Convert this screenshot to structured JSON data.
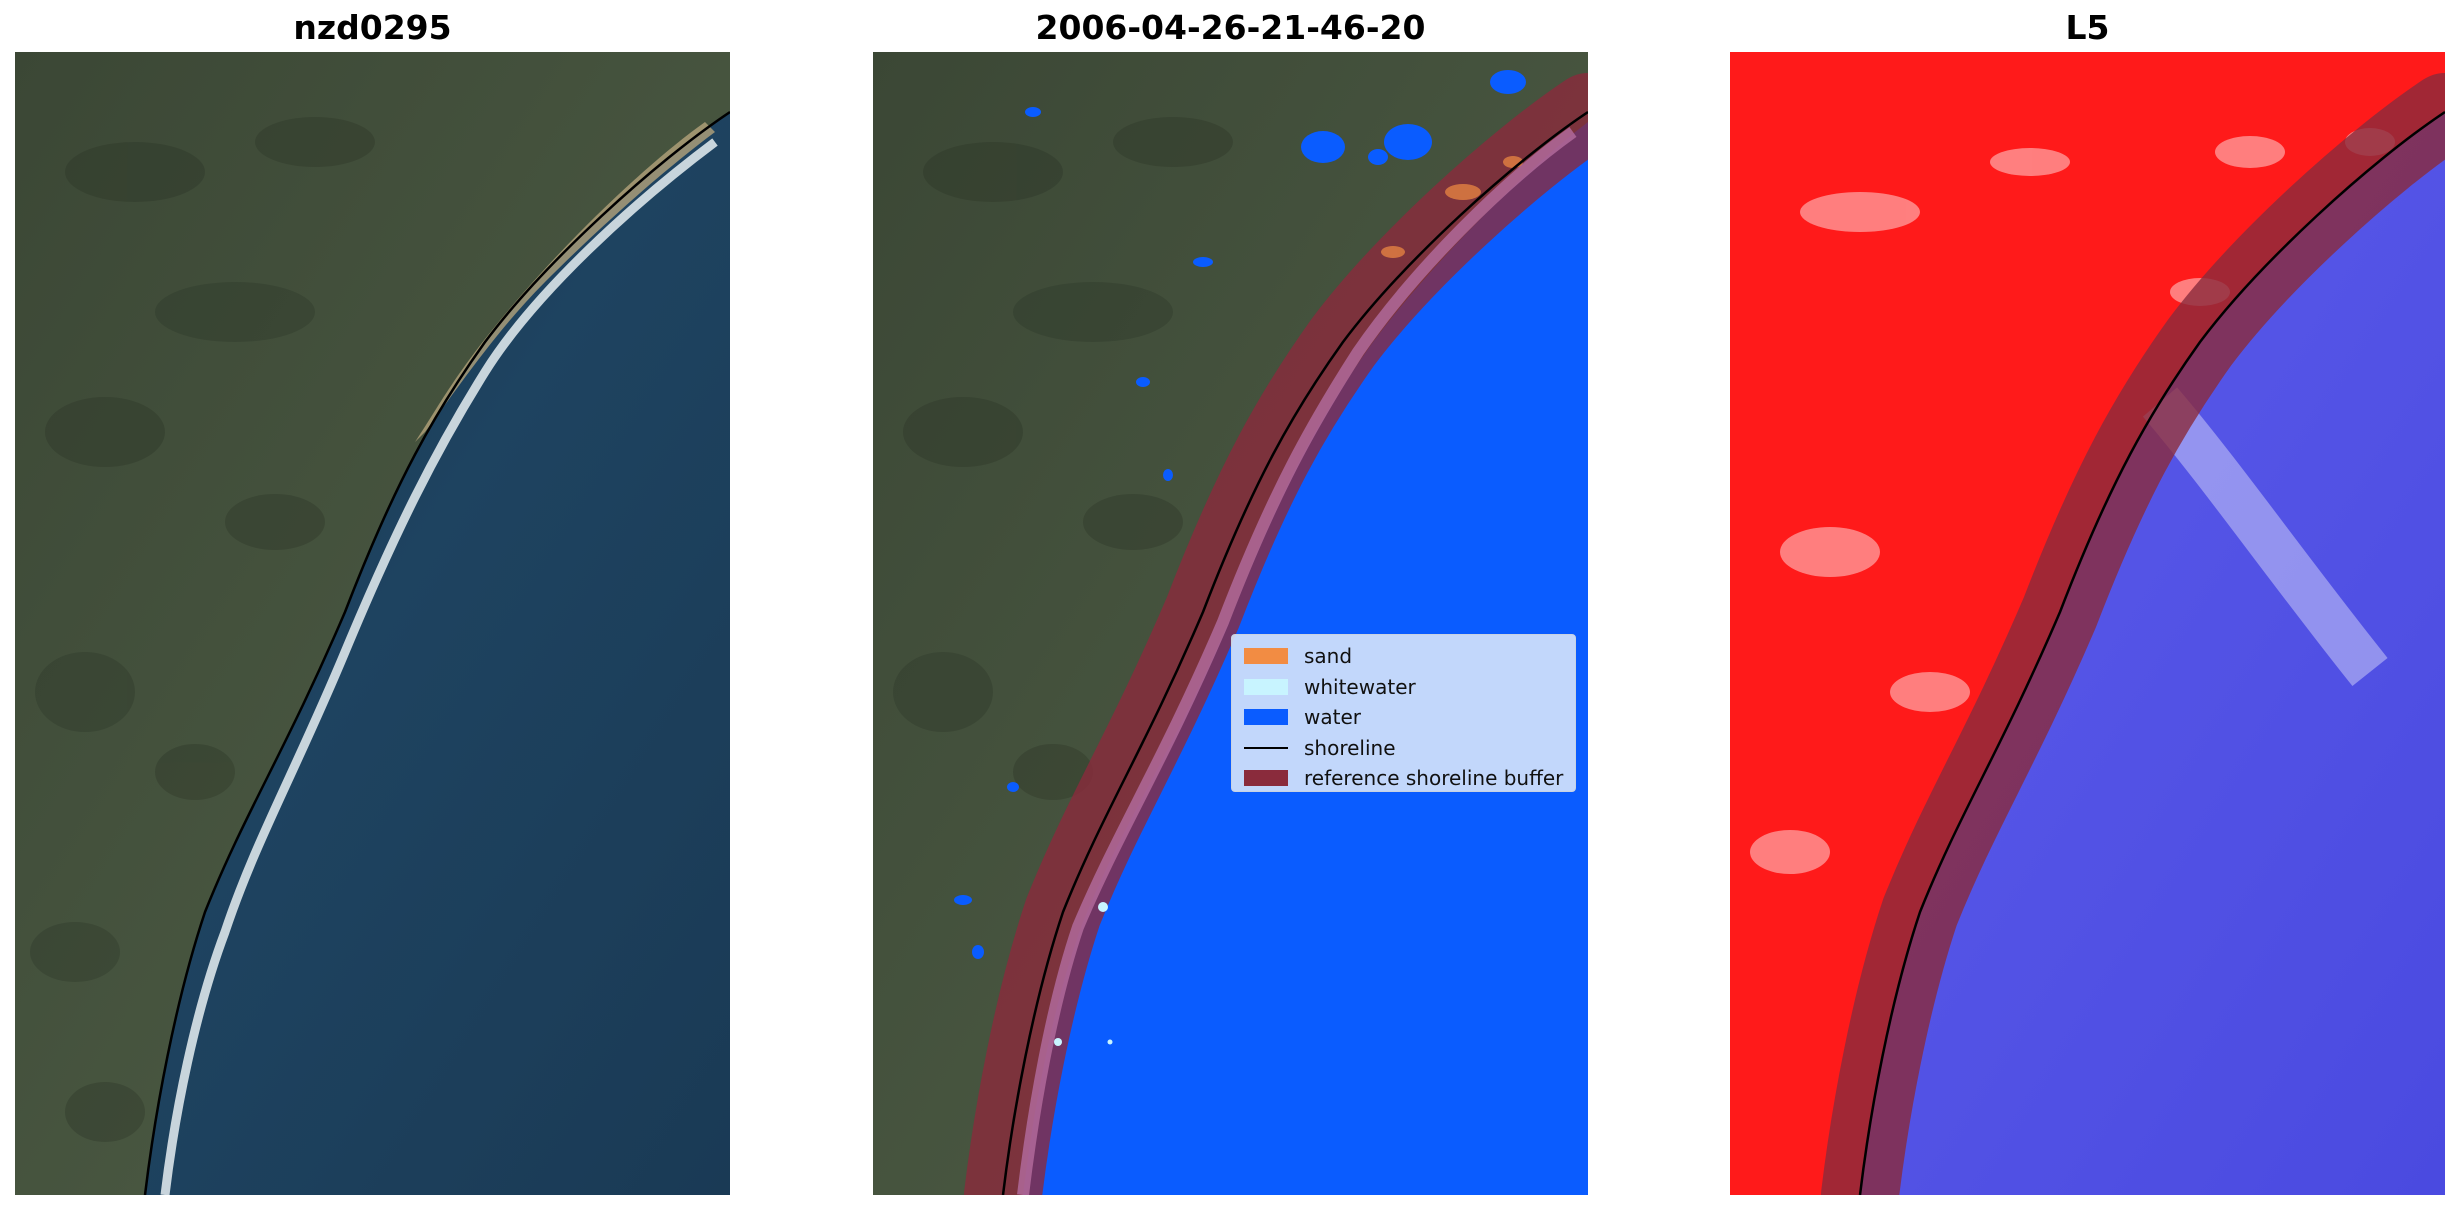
{
  "panels": [
    {
      "title": "nzd0295"
    },
    {
      "title": "2006-04-26-21-46-20"
    },
    {
      "title": "L5"
    }
  ],
  "legend": {
    "items": [
      {
        "label": "sand",
        "color": "#f28c43",
        "kind": "patch"
      },
      {
        "label": "whitewater",
        "color": "#c8f4ff",
        "kind": "patch"
      },
      {
        "label": "water",
        "color": "#0a5cff",
        "kind": "patch"
      },
      {
        "label": "shoreline",
        "color": "#000000",
        "kind": "line"
      },
      {
        "label": "reference shoreline buffer",
        "color": "#8a2b3c",
        "kind": "patch"
      }
    ]
  },
  "colors": {
    "land_dark": "#3a4636",
    "land_mid": "#4d5a44",
    "ocean_dark": "#142a44",
    "ocean_mid": "#1f4460",
    "water_class": "#0a5cff",
    "buffer": "#8a2b3c",
    "index_land": "#ff1a1a",
    "index_water": "#4a4ae0"
  }
}
